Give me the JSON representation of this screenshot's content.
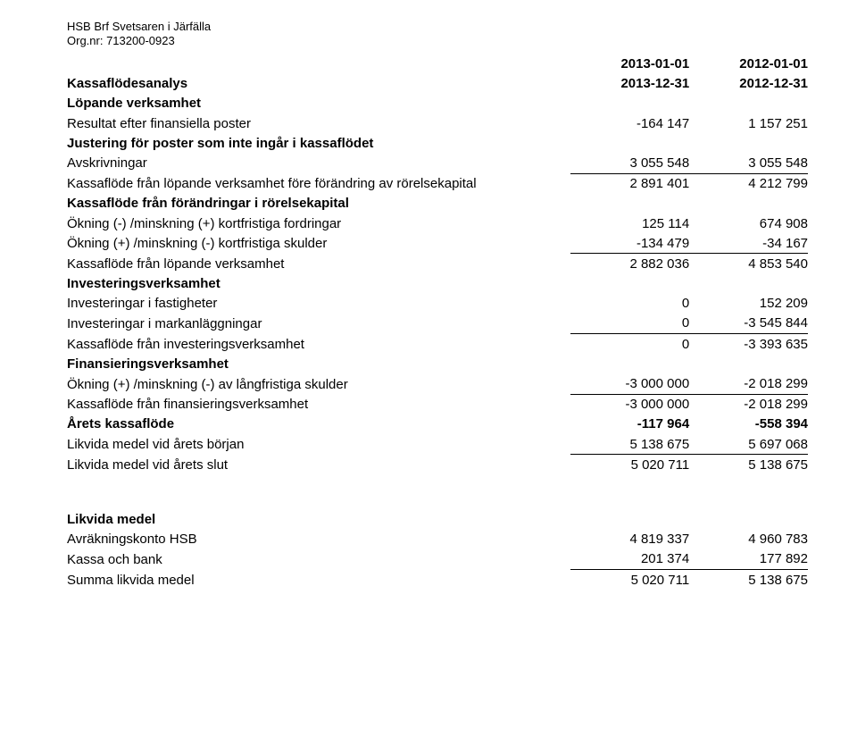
{
  "org": {
    "name": "HSB Brf Svetsaren i Järfälla",
    "orgnr_label": "Org.nr: 713200-0923"
  },
  "title": "Kassaflödesanalys",
  "periods": {
    "col1_top": "2013-01-01",
    "col1_bot": "2013-12-31",
    "col2_top": "2012-01-01",
    "col2_bot": "2012-12-31"
  },
  "sections": {
    "lopande": {
      "heading": "Löpande verksamhet",
      "resultat": {
        "label": "Resultat efter finansiella poster",
        "v1": "-164 147",
        "v2": "1 157 251"
      },
      "justering_heading": "Justering för poster som inte ingår i kassaflödet",
      "avskriv": {
        "label": "Avskrivningar",
        "v1": "3 055 548",
        "v2": "3 055 548"
      },
      "kf_fore": {
        "label": "Kassaflöde från löpande verksamhet före förändring av rörelsekapital",
        "v1": "2 891 401",
        "v2": "4 212 799"
      },
      "forandr_heading": "Kassaflöde från förändringar i rörelsekapital",
      "okning_kf_fordr": {
        "label": "Ökning (-) /minskning (+) kortfristiga fordringar",
        "v1": "125 114",
        "v2": "674 908"
      },
      "okning_kf_skuld": {
        "label": "Ökning (+) /minskning (-) kortfristiga skulder",
        "v1": "-134 479",
        "v2": "-34 167"
      },
      "kf_lopande": {
        "label": "Kassaflöde från löpande verksamhet",
        "v1": "2 882 036",
        "v2": "4 853 540"
      }
    },
    "invest": {
      "heading": "Investeringsverksamhet",
      "fastigheter": {
        "label": "Investeringar i fastigheter",
        "v1": "0",
        "v2": "152 209"
      },
      "mark": {
        "label": "Investeringar i markanläggningar",
        "v1": "0",
        "v2": "-3 545 844"
      },
      "kf_invest": {
        "label": "Kassaflöde från investeringsverksamhet",
        "v1": "0",
        "v2": "-3 393 635"
      }
    },
    "finans": {
      "heading": "Finansieringsverksamhet",
      "langfr": {
        "label": "Ökning (+) /minskning (-) av långfristiga skulder",
        "v1": "-3 000 000",
        "v2": "-2 018 299"
      },
      "kf_finans": {
        "label": "Kassaflöde från finansieringsverksamhet",
        "v1": "-3 000 000",
        "v2": "-2 018 299"
      }
    },
    "summary": {
      "arets": {
        "label": "Årets kassaflöde",
        "v1": "-117 964",
        "v2": "-558 394"
      },
      "borjan": {
        "label": "Likvida medel vid årets början",
        "v1": "5 138 675",
        "v2": "5 697 068"
      },
      "slut": {
        "label": "Likvida medel vid årets slut",
        "v1": "5 020 711",
        "v2": "5 138 675"
      }
    },
    "likvida": {
      "heading": "Likvida medel",
      "avrak": {
        "label": "Avräkningskonto HSB",
        "v1": "4 819 337",
        "v2": "4 960 783"
      },
      "kassa": {
        "label": "Kassa och bank",
        "v1": "201 374",
        "v2": "177 892"
      },
      "summa": {
        "label": "Summa likvida medel",
        "v1": "5 020 711",
        "v2": "5 138 675"
      }
    }
  }
}
